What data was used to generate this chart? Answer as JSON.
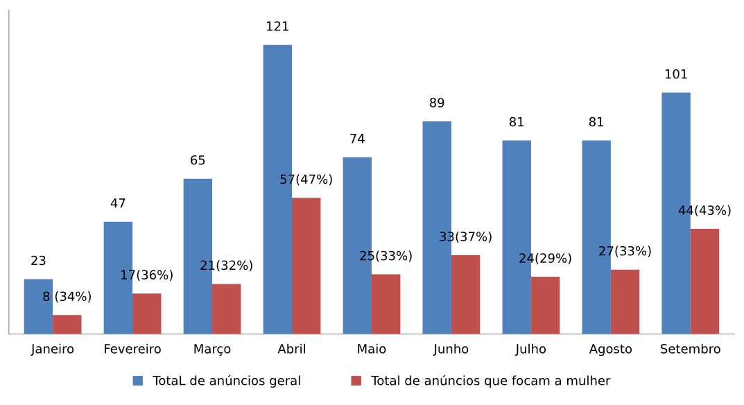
{
  "chart_data": {
    "type": "bar",
    "categories": [
      "Janeiro",
      "Fevereiro",
      "Março",
      "Abril",
      "Maio",
      "Junho",
      "Julho",
      "Agosto",
      "Setembro"
    ],
    "series": [
      {
        "name": "TotaL de anúncios geral",
        "color": "#4f81bd",
        "values": [
          23,
          47,
          65,
          121,
          74,
          89,
          81,
          81,
          101
        ],
        "value_labels": [
          "23",
          "47",
          "65",
          "121",
          "74",
          "89",
          "81",
          "81",
          "101"
        ]
      },
      {
        "name": "Total de anúncios que focam a mulher",
        "color": "#c0504d",
        "values": [
          8,
          17,
          21,
          57,
          25,
          33,
          24,
          27,
          44
        ],
        "value_labels": [
          "8 (34%)",
          "17(36%)",
          "21(32%)",
          "57(47%)",
          "25(33%)",
          "33(37%)",
          "24(29%)",
          "27(33%)",
          "44(43%)"
        ]
      }
    ],
    "legend": "bottom",
    "grid": false
  }
}
